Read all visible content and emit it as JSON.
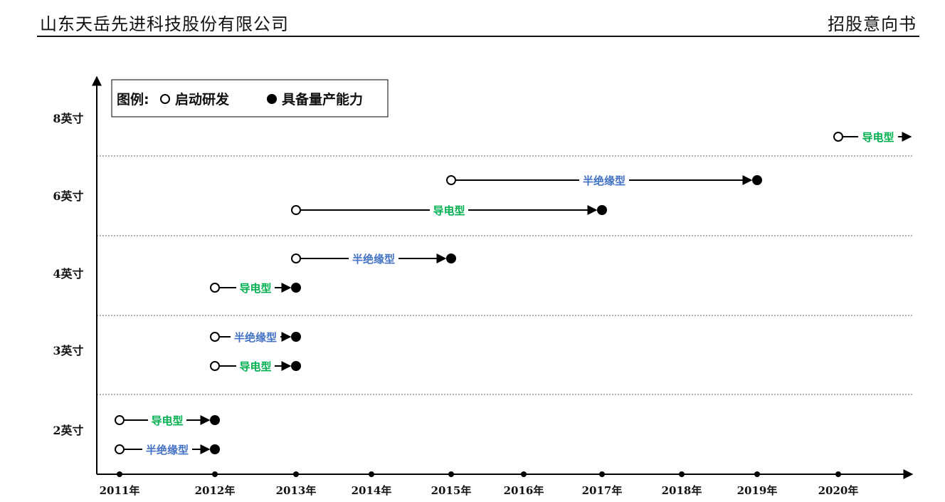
{
  "header": {
    "company": "山东天岳先进科技股份有限公司",
    "doc_type": "招股意向书"
  },
  "legend": {
    "title": "图例:",
    "open_label": "启动研发",
    "closed_label": "具备量产能力"
  },
  "colors": {
    "conductive": "#00B050",
    "semi_insulating": "#4472C4",
    "axis": "#000000"
  },
  "chart_data": {
    "type": "timeline",
    "x_ticks": [
      "2011年",
      "2012年",
      "2013年",
      "2014年",
      "2015年",
      "2016年",
      "2017年",
      "2018年",
      "2019年",
      "2020年"
    ],
    "y_categories": [
      "2英寸",
      "3英寸",
      "4英寸",
      "6英寸",
      "8英寸"
    ],
    "series": [
      {
        "size": "2英寸",
        "label": "导电型",
        "type": "conductive",
        "start": 2011,
        "end": 2012
      },
      {
        "size": "2英寸",
        "label": "半绝缘型",
        "type": "semi_insulating",
        "start": 2011,
        "end": 2012
      },
      {
        "size": "3英寸",
        "label": "半绝缘型",
        "type": "semi_insulating",
        "start": 2012,
        "end": 2013
      },
      {
        "size": "3英寸",
        "label": "导电型",
        "type": "conductive",
        "start": 2012,
        "end": 2013
      },
      {
        "size": "4英寸",
        "label": "半绝缘型",
        "type": "semi_insulating",
        "start": 2013,
        "end": 2015
      },
      {
        "size": "4英寸",
        "label": "导电型",
        "type": "conductive",
        "start": 2012,
        "end": 2013
      },
      {
        "size": "6英寸",
        "label": "半绝缘型",
        "type": "semi_insulating",
        "start": 2015,
        "end": 2019
      },
      {
        "size": "6英寸",
        "label": "导电型",
        "type": "conductive",
        "start": 2013,
        "end": 2017
      },
      {
        "size": "8英寸",
        "label": "导电型",
        "type": "conductive",
        "start": 2020,
        "end": null
      }
    ]
  }
}
